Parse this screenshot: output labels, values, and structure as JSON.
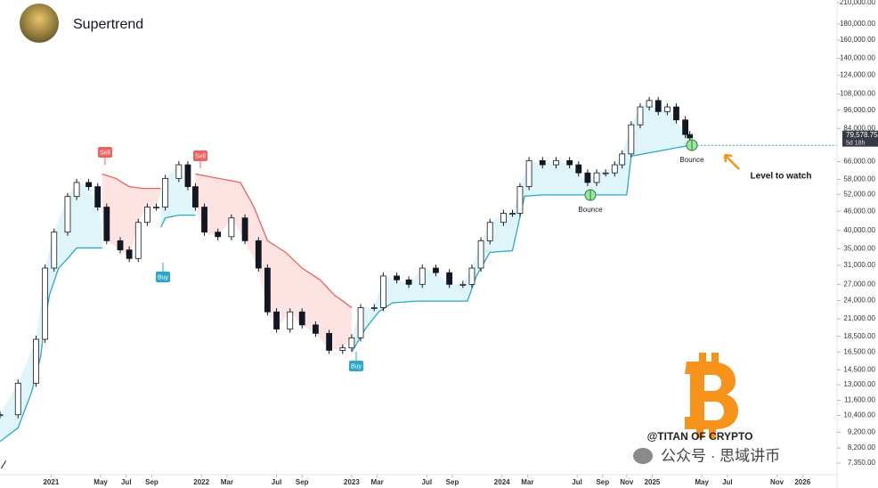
{
  "chart_data": {
    "type": "candlestick",
    "title": "Supertrend",
    "log_scale": true,
    "grid": false,
    "up_color": "#ffffff",
    "down_color": "#131722",
    "x": [
      2020.66,
      2020.78,
      2020.9,
      2020.96,
      2021.02,
      2021.11,
      2021.17,
      2021.25,
      2021.31,
      2021.37,
      2021.46,
      2021.52,
      2021.58,
      2021.64,
      2021.7,
      2021.76,
      2021.85,
      2021.91,
      2021.96,
      2022.02,
      2022.11,
      2022.2,
      2022.29,
      2022.38,
      2022.44,
      2022.5,
      2022.59,
      2022.67,
      2022.76,
      2022.85,
      2022.94,
      2023.0,
      2023.06,
      2023.15,
      2023.21,
      2023.3,
      2023.38,
      2023.47,
      2023.56,
      2023.65,
      2023.74,
      2023.8,
      2023.86,
      2023.92,
      2024.01,
      2024.07,
      2024.12,
      2024.18,
      2024.27,
      2024.36,
      2024.45,
      2024.51,
      2024.57,
      2024.63,
      2024.69,
      2024.75,
      2024.8,
      2024.86,
      2024.92,
      2024.98,
      2025.04,
      2025.1,
      2025.16,
      2025.22,
      2025.25
    ],
    "values": [
      10450,
      13150,
      18100,
      30400,
      39500,
      51200,
      56700,
      55000,
      47400,
      37100,
      34700,
      32600,
      42400,
      47400,
      47400,
      58400,
      64500,
      55000,
      47400,
      39500,
      38200,
      43800,
      37100,
      30400,
      22100,
      19500,
      22100,
      20100,
      18900,
      16700,
      17000,
      18300,
      22800,
      22800,
      28700,
      27900,
      27000,
      30400,
      29400,
      27000,
      27000,
      30400,
      37100,
      42400,
      45300,
      45300,
      55000,
      66500,
      64500,
      66500,
      64500,
      60800,
      56700,
      60800,
      60800,
      64500,
      69800,
      86300,
      98300,
      103000,
      95000,
      98300,
      89400,
      80400,
      78400
    ],
    "supertrend": [
      {
        "color": "#29a8c9",
        "fill": "#e0f5fa",
        "x": [
          2020.66,
          2020.78,
          2020.87,
          2020.93,
          2020.96,
          2020.99,
          2021.05,
          2021.11,
          2021.17,
          2021.34
        ],
        "values": [
          8600,
          9500,
          12300,
          15900,
          20700,
          25100,
          30400,
          32600,
          35200,
          35200
        ]
      },
      {
        "color": "#f0605d",
        "fill": "#fde4e3",
        "x": [
          2021.34,
          2021.43,
          2021.52,
          2021.61,
          2021.73
        ],
        "values": [
          60300,
          58400,
          55000,
          54300,
          54300
        ]
      },
      {
        "color": "#29a8c9",
        "fill": "#e0f5fa",
        "x": [
          2021.73,
          2021.76,
          2021.85,
          2021.96
        ],
        "values": [
          40900,
          43800,
          44700,
          44700
        ]
      },
      {
        "color": "#f0605d",
        "fill": "#fde4e3",
        "x": [
          2021.96,
          2022.26,
          2022.35,
          2022.44,
          2022.56,
          2022.67,
          2022.79,
          2022.88,
          2023.0
        ],
        "values": [
          60300,
          56700,
          47400,
          37100,
          34100,
          30400,
          27900,
          25100,
          22800
        ]
      },
      {
        "color": "#29a8c9",
        "fill": "#e0f5fa",
        "x": [
          2023.0,
          2023.09,
          2023.18,
          2023.27,
          2023.44,
          2023.77,
          2023.83,
          2023.92,
          2024.07,
          2024.15,
          2024.27,
          2024.83,
          2024.86,
          2025.25
        ],
        "values": [
          16500,
          19500,
          22100,
          23600,
          23900,
          23900,
          28700,
          34100,
          34500,
          51300,
          51800,
          51800,
          68700,
          74300
        ]
      }
    ],
    "last_price": 79578.75,
    "value_labels": [
      "79,578.75"
    ],
    "countdown": "5d 18h",
    "level": 74300,
    "annotations": [
      "Sell",
      "Sell",
      "Buy",
      "Buy",
      "Bounce",
      "Bounce",
      "Level to watch"
    ],
    "watermark": "@TITAN OF CRYPTO",
    "channel": "公众号 · 思域讲币",
    "xlim": [
      2020.66,
      2026.2
    ],
    "ylim": [
      7350,
      210000
    ],
    "xticks": [
      2021,
      {
        "value": 2021.33,
        "label": "May"
      },
      {
        "value": 2021.5,
        "label": "Jul"
      },
      {
        "value": 2021.67,
        "label": "Sep"
      },
      2022,
      {
        "value": 2022.17,
        "label": "Mar"
      },
      {
        "value": 2022.5,
        "label": "Jul"
      },
      {
        "value": 2022.67,
        "label": "Sep"
      },
      2023,
      {
        "value": 2023.17,
        "label": "Mar"
      },
      {
        "value": 2023.5,
        "label": "Jul"
      },
      {
        "value": 2023.67,
        "label": "Sep"
      },
      2024,
      {
        "value": 2024.17,
        "label": "Mar"
      },
      {
        "value": 2024.5,
        "label": "Jul"
      },
      {
        "value": 2024.67,
        "label": "Sep"
      },
      {
        "value": 2024.83,
        "label": "Nov"
      },
      2025,
      {
        "value": 2025.33,
        "label": "May"
      },
      {
        "value": 2025.5,
        "label": "Jul"
      },
      {
        "value": 2025.83,
        "label": "Nov"
      },
      2026
    ],
    "yticks": [
      {
        "value": 210000,
        "label": "210,000.00"
      },
      {
        "value": 180000,
        "label": "180,000.00"
      },
      {
        "value": 160000,
        "label": "160,000.00"
      },
      {
        "value": 140000,
        "label": "140,000.00"
      },
      {
        "value": 124000,
        "label": "124,000.00"
      },
      {
        "value": 108000,
        "label": "108,000.00"
      },
      {
        "value": 96000,
        "label": "96,000.00"
      },
      {
        "value": 84000,
        "label": "84,000.00"
      },
      {
        "value": 66000,
        "label": "66,000.00"
      },
      {
        "value": 58000,
        "label": "58,000.00"
      },
      {
        "value": 52000,
        "label": "52,000.00"
      },
      {
        "value": 46000,
        "label": "46,000.00"
      },
      {
        "value": 40000,
        "label": "40,000.00"
      },
      {
        "value": 35000,
        "label": "35,000.00"
      },
      {
        "value": 31000,
        "label": "31,000.00"
      },
      {
        "value": 27000,
        "label": "27,000.00"
      },
      {
        "value": 24000,
        "label": "24,000.00"
      },
      {
        "value": 21000,
        "label": "21,000.00"
      },
      {
        "value": 18500,
        "label": "18,500.00"
      },
      {
        "value": 16500,
        "label": "16,500.00"
      },
      {
        "value": 14500,
        "label": "14,500.00"
      },
      {
        "value": 13000,
        "label": "13,000.00"
      },
      {
        "value": 11600,
        "label": "11,600.00"
      },
      {
        "value": 10400,
        "label": "10,400.00"
      },
      {
        "value": 9200,
        "label": "9,200.00"
      },
      {
        "value": 8200,
        "label": "8,200.00"
      },
      {
        "value": 7350,
        "label": "7,350.00"
      }
    ]
  }
}
